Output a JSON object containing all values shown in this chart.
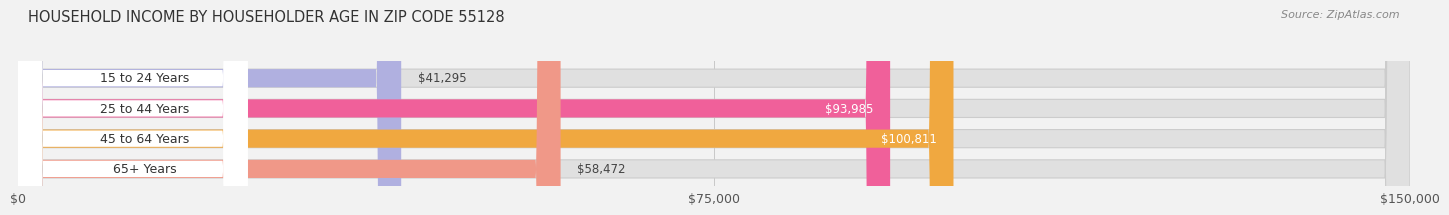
{
  "title": "HOUSEHOLD INCOME BY HOUSEHOLDER AGE IN ZIP CODE 55128",
  "source": "Source: ZipAtlas.com",
  "categories": [
    "15 to 24 Years",
    "25 to 44 Years",
    "45 to 64 Years",
    "65+ Years"
  ],
  "values": [
    41295,
    93985,
    100811,
    58472
  ],
  "bar_colors": [
    "#b0b0e0",
    "#f0609a",
    "#f0a840",
    "#f09888"
  ],
  "bar_label_colors": [
    "#444444",
    "#ffffff",
    "#ffffff",
    "#444444"
  ],
  "xlim": [
    0,
    150000
  ],
  "xticks": [
    0,
    75000,
    150000
  ],
  "xtick_labels": [
    "$0",
    "$75,000",
    "$150,000"
  ],
  "background_color": "#f2f2f2",
  "bar_bg_color": "#e0e0e0",
  "label_bg_color": "#ffffff",
  "title_fontsize": 10.5,
  "source_fontsize": 8,
  "tick_fontsize": 9,
  "cat_fontsize": 9,
  "val_fontsize": 8.5,
  "bar_height": 0.6,
  "figsize": [
    14.06,
    2.33
  ]
}
